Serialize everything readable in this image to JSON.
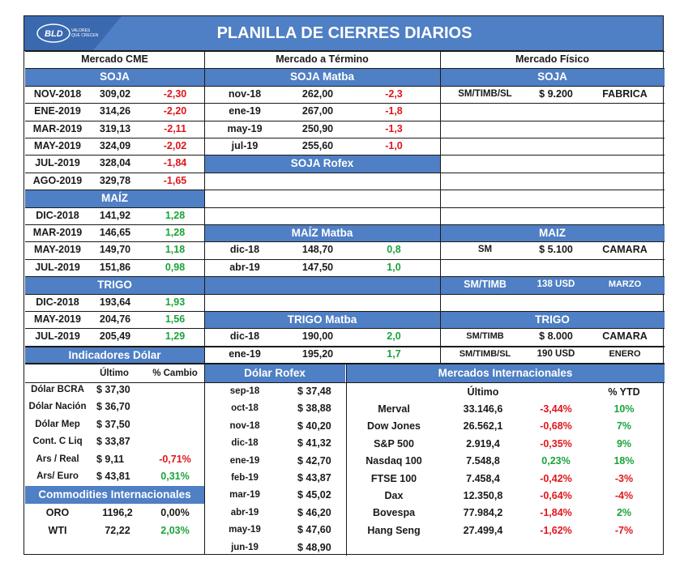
{
  "title": "PLANILLA DE CIERRES DIARIOS",
  "logo": {
    "text": "BLD",
    "tag1": "VALORES",
    "tag2": "QUE CRECEN"
  },
  "columns": {
    "cme": "Mercado CME",
    "termino": "Mercado a Término",
    "fisico": "Mercado Físico"
  },
  "cme": {
    "soja_title": "SOJA",
    "soja": [
      [
        "NOV-2018",
        "309,02",
        "-2,30"
      ],
      [
        "ENE-2019",
        "314,26",
        "-2,20"
      ],
      [
        "MAR-2019",
        "319,13",
        "-2,11"
      ],
      [
        "MAY-2019",
        "324,09",
        "-2,02"
      ],
      [
        "JUL-2019",
        "328,04",
        "-1,84"
      ],
      [
        "AGO-2019",
        "329,78",
        "-1,65"
      ]
    ],
    "maiz_title": "MAÍZ",
    "maiz": [
      [
        "DIC-2018",
        "141,92",
        "1,28"
      ],
      [
        "MAR-2019",
        "146,65",
        "1,28"
      ],
      [
        "MAY-2019",
        "149,70",
        "1,18"
      ],
      [
        "JUL-2019",
        "151,86",
        "0,98"
      ]
    ],
    "trigo_title": "TRIGO",
    "trigo": [
      [
        "DIC-2018",
        "193,64",
        "1,93"
      ],
      [
        "MAY-2019",
        "204,76",
        "1,56"
      ],
      [
        "JUL-2019",
        "205,49",
        "1,29"
      ]
    ]
  },
  "termino": {
    "soja_matba_title": "SOJA Matba",
    "soja_matba": [
      [
        "nov-18",
        "262,00",
        "-2,3"
      ],
      [
        "ene-19",
        "267,00",
        "-1,8"
      ],
      [
        "may-19",
        "250,90",
        "-1,3"
      ],
      [
        "jul-19",
        "255,60",
        "-1,0"
      ]
    ],
    "soja_rofex_title": "SOJA Rofex",
    "maiz_matba_title": "MAÍZ Matba",
    "maiz_matba": [
      [
        "dic-18",
        "148,70",
        "0,8"
      ],
      [
        "abr-19",
        "147,50",
        "1,0"
      ]
    ],
    "trigo_matba_title": "TRIGO Matba",
    "trigo_matba": [
      [
        "dic-18",
        "190,00",
        "2,0"
      ],
      [
        "ene-19",
        "195,20",
        "1,7"
      ]
    ]
  },
  "fisico": {
    "soja_title": "SOJA",
    "soja": [
      [
        "SM/TIMB/SL",
        "$ 9.200",
        "FABRICA"
      ]
    ],
    "maiz_title": "MAIZ",
    "maiz": [
      [
        "SM",
        "$ 5.100",
        "CAMARA"
      ],
      [
        "SM/TIMB",
        "138 USD",
        "MARZO"
      ]
    ],
    "trigo_title": "TRIGO",
    "trigo": [
      [
        "SM/TIMB",
        "$ 8.000",
        "CAMARA"
      ],
      [
        "SM/TIMB/SL",
        "190 USD",
        "ENERO"
      ]
    ]
  },
  "dolar": {
    "title": "Indicadores Dólar",
    "h_ultimo": "Último",
    "h_cambio": "% Cambio",
    "rows": [
      [
        "Dólar BCRA",
        "$ 37,30",
        ""
      ],
      [
        "Dólar Nación",
        "$ 36,70",
        ""
      ],
      [
        "Dólar Mep",
        "$ 37,50",
        ""
      ],
      [
        "Cont. C Liq",
        "$ 33,87",
        ""
      ],
      [
        "Ars / Real",
        "$ 9,11",
        "-0,71%"
      ],
      [
        "Ars/ Euro",
        "$ 43,81",
        "0,31%"
      ]
    ]
  },
  "commodities": {
    "title": "Commodities Internacionales",
    "rows": [
      [
        "ORO",
        "1196,2",
        "0,00%"
      ],
      [
        "WTI",
        "72,22",
        "2,03%"
      ]
    ]
  },
  "rofex": {
    "title": "Dólar Rofex",
    "rows": [
      [
        "sep-18",
        "$ 37,48"
      ],
      [
        "oct-18",
        "$ 38,88"
      ],
      [
        "nov-18",
        "$ 40,20"
      ],
      [
        "dic-18",
        "$ 41,32"
      ],
      [
        "ene-19",
        "$ 42,70"
      ],
      [
        "feb-19",
        "$ 43,87"
      ],
      [
        "mar-19",
        "$ 45,02"
      ],
      [
        "abr-19",
        "$ 46,20"
      ],
      [
        "may-19",
        "$ 47,60"
      ],
      [
        "jun-19",
        "$ 48,90"
      ]
    ]
  },
  "intl": {
    "title": "Mercados Internacionales",
    "h_ultimo": "Último",
    "h_ytd": "% YTD",
    "rows": [
      [
        "Merval",
        "33.146,6",
        "-3,44%",
        "10%"
      ],
      [
        "Dow Jones",
        "26.562,1",
        "-0,68%",
        "7%"
      ],
      [
        "S&P 500",
        "2.919,4",
        "-0,35%",
        "9%"
      ],
      [
        "Nasdaq 100",
        "7.548,8",
        "0,23%",
        "18%"
      ],
      [
        "FTSE 100",
        "7.458,4",
        "-0,42%",
        "-3%"
      ],
      [
        "Dax",
        "12.350,8",
        "-0,64%",
        "-4%"
      ],
      [
        "Bovespa",
        "77.984,2",
        "-1,84%",
        "2%"
      ],
      [
        "Hang Seng",
        "27.499,4",
        "-1,62%",
        "-7%"
      ]
    ]
  },
  "colors": {
    "header_blue": "#4f7fc4",
    "negative": "#e0161b",
    "positive": "#1aa33a"
  }
}
